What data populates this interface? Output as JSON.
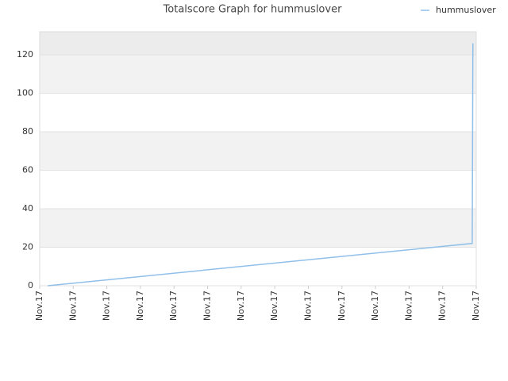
{
  "chart_data": {
    "type": "line",
    "title": "Totalscore Graph for hummuslover",
    "x": [
      0.24,
      12.88,
      12.9
    ],
    "series": [
      {
        "name": "hummuslover",
        "color": "#90c0ea",
        "values": [
          0,
          22,
          126
        ]
      }
    ],
    "xlim": [
      0,
      13
    ],
    "xticks": [
      {
        "value": 0,
        "label": "Nov.17"
      },
      {
        "value": 1,
        "label": "Nov.17"
      },
      {
        "value": 2,
        "label": "Nov.17"
      },
      {
        "value": 3,
        "label": "Nov.17"
      },
      {
        "value": 4,
        "label": "Nov.17"
      },
      {
        "value": 5,
        "label": "Nov.17"
      },
      {
        "value": 6,
        "label": "Nov.17"
      },
      {
        "value": 7,
        "label": "Nov.17"
      },
      {
        "value": 8,
        "label": "Nov.17"
      },
      {
        "value": 9,
        "label": "Nov.17"
      },
      {
        "value": 10,
        "label": "Nov.17"
      },
      {
        "value": 11,
        "label": "Nov.17"
      },
      {
        "value": 12,
        "label": "Nov.17"
      },
      {
        "value": 13,
        "label": "Nov.17"
      }
    ],
    "ylim": [
      0,
      132
    ],
    "yticks": [
      0,
      20,
      40,
      60,
      80,
      100,
      120
    ],
    "grid": true,
    "legend": "top-right"
  }
}
